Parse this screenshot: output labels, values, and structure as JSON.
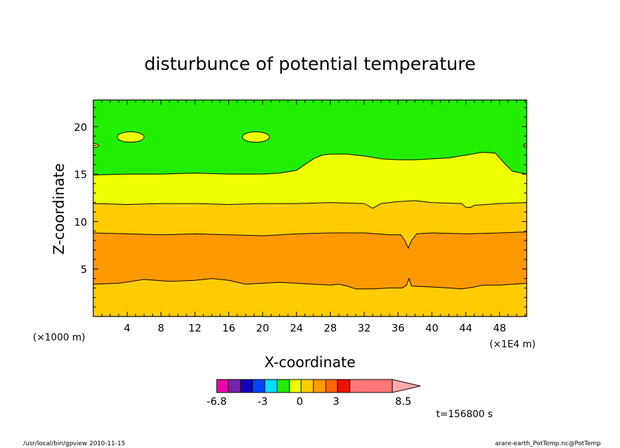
{
  "chart_data": {
    "type": "contour",
    "title": "disturbunce of potential temperature",
    "xlabel": "X-coordinate",
    "ylabel": "Z-coordinate",
    "x_unit_left": "(×1000 m)",
    "x_unit_right": "(×1E4 m)",
    "xlim": [
      0,
      51.2
    ],
    "ylim": [
      0,
      22.8
    ],
    "x_ticks": [
      4,
      8,
      12,
      16,
      20,
      24,
      28,
      32,
      36,
      40,
      44,
      48
    ],
    "y_ticks": [
      5,
      10,
      15,
      20
    ],
    "bands": [
      {
        "name": "lower orange-yellow",
        "level": 0.5,
        "color": "#ffcc00",
        "upper_boundary": [
          [
            0,
            3.4
          ],
          [
            3,
            3.5
          ],
          [
            6,
            3.9
          ],
          [
            9,
            3.7
          ],
          [
            12,
            3.8
          ],
          [
            14,
            4.0
          ],
          [
            16,
            3.8
          ],
          [
            18,
            3.4
          ],
          [
            20,
            3.5
          ],
          [
            22,
            3.6
          ],
          [
            24,
            3.5
          ],
          [
            26,
            3.4
          ],
          [
            28,
            3.3
          ],
          [
            29,
            3.4
          ],
          [
            30,
            3.2
          ],
          [
            31,
            2.9
          ],
          [
            33,
            2.9
          ],
          [
            35,
            3.0
          ],
          [
            36.5,
            3.0
          ],
          [
            37,
            3.3
          ],
          [
            37.3,
            4.0
          ],
          [
            37.6,
            3.2
          ],
          [
            40,
            3.1
          ],
          [
            42,
            3.0
          ],
          [
            43.5,
            2.9
          ],
          [
            45,
            3.1
          ],
          [
            46,
            3.3
          ],
          [
            48,
            3.3
          ],
          [
            51.2,
            3.5
          ]
        ]
      },
      {
        "name": "orange",
        "level": 1.5,
        "color": "#ff9900",
        "upper_boundary": [
          [
            0,
            8.8
          ],
          [
            4,
            8.7
          ],
          [
            8,
            8.6
          ],
          [
            12,
            8.7
          ],
          [
            16,
            8.6
          ],
          [
            20,
            8.5
          ],
          [
            24,
            8.7
          ],
          [
            28,
            8.8
          ],
          [
            32,
            8.8
          ],
          [
            35,
            8.6
          ],
          [
            36.3,
            8.6
          ],
          [
            36.8,
            8.0
          ],
          [
            37.2,
            7.2
          ],
          [
            37.6,
            8.0
          ],
          [
            38.2,
            8.7
          ],
          [
            40,
            8.8
          ],
          [
            44,
            8.7
          ],
          [
            48,
            8.8
          ],
          [
            51.2,
            8.9
          ]
        ]
      },
      {
        "name": "orange-yellow",
        "level": 0.5,
        "color": "#ffcc00",
        "upper_boundary": [
          [
            0,
            11.9
          ],
          [
            4,
            11.8
          ],
          [
            8,
            11.9
          ],
          [
            12,
            11.9
          ],
          [
            16,
            11.8
          ],
          [
            20,
            11.9
          ],
          [
            24,
            11.9
          ],
          [
            28,
            12.0
          ],
          [
            32,
            11.9
          ],
          [
            32.6,
            11.6
          ],
          [
            33,
            11.4
          ],
          [
            33.4,
            11.6
          ],
          [
            34,
            11.9
          ],
          [
            36,
            12.1
          ],
          [
            38,
            12.2
          ],
          [
            40,
            12.0
          ],
          [
            43.5,
            11.9
          ],
          [
            44,
            11.5
          ],
          [
            44.6,
            11.5
          ],
          [
            45,
            11.7
          ],
          [
            48,
            11.9
          ],
          [
            51.2,
            12.0
          ]
        ]
      },
      {
        "name": "yellow",
        "level": -0.5,
        "color": "#eeff00",
        "upper_boundary": [
          [
            0,
            14.9
          ],
          [
            4,
            15.0
          ],
          [
            8,
            15.0
          ],
          [
            12,
            15.1
          ],
          [
            16,
            15.0
          ],
          [
            20,
            15.0
          ],
          [
            22,
            15.1
          ],
          [
            24,
            15.4
          ],
          [
            25,
            16.0
          ],
          [
            26,
            16.6
          ],
          [
            27,
            17.0
          ],
          [
            28,
            17.1
          ],
          [
            30,
            17.1
          ],
          [
            32,
            16.9
          ],
          [
            34,
            16.6
          ],
          [
            36,
            16.5
          ],
          [
            38,
            16.5
          ],
          [
            40,
            16.6
          ],
          [
            42,
            16.7
          ],
          [
            44,
            17.0
          ],
          [
            46,
            17.3
          ],
          [
            47.5,
            17.2
          ],
          [
            48.5,
            16.2
          ],
          [
            49.5,
            15.3
          ],
          [
            51.2,
            15.0
          ]
        ]
      },
      {
        "name": "green",
        "level": -1.5,
        "color": "#22ee00",
        "upper_boundary": "top"
      }
    ],
    "islands": [
      {
        "cx": 4.4,
        "cy": 18.9,
        "rx": 1.6,
        "ry": 0.55,
        "color": "#eeff00"
      },
      {
        "cx": 19.2,
        "cy": 18.9,
        "rx": 1.6,
        "ry": 0.55,
        "color": "#eeff00"
      }
    ],
    "colorbar": {
      "colors": [
        "#ee00aa",
        "#7722aa",
        "#1100bb",
        "#0044ff",
        "#00ddff",
        "#22ee00",
        "#eeff00",
        "#ffcc00",
        "#ff9900",
        "#ff6600",
        "#ee1100",
        "#ff7777",
        "#ffaaaa"
      ],
      "tick_labels": [
        "-6.8",
        "-3",
        "0",
        "3",
        "8.5"
      ]
    },
    "time_label": "t=156800 s",
    "footer_left": "/usr/local/bin/gpview  2010-11-15",
    "footer_right": "arare-earth_PotTemp.nc@PotTemp"
  }
}
